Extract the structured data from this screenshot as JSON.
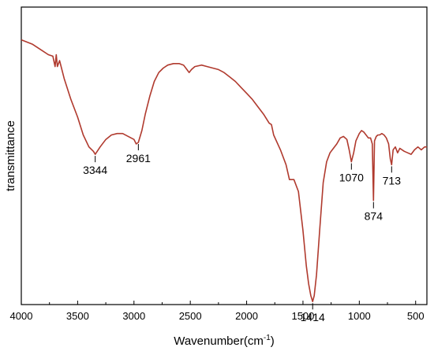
{
  "chart_data": {
    "type": "line",
    "xlabel_main": "Wavenumber(cm",
    "xlabel_sup": "-1",
    "xlabel_tail": ")",
    "ylabel": "transmittance",
    "xlim": [
      4000,
      400
    ],
    "ylim": [
      0,
      1
    ],
    "x_reversed": true,
    "y_ticks_shown": false,
    "grid": false,
    "line_color": "#b03a2e",
    "x_ticks": [
      4000,
      3500,
      3000,
      2500,
      2000,
      1500,
      1000,
      500
    ],
    "x_tick_labels": [
      "4000",
      "3500",
      "3000",
      "2500",
      "2000",
      "1500",
      "1000",
      "500"
    ],
    "series": [
      {
        "x": [
          4000,
          3900,
          3820,
          3760,
          3720,
          3700,
          3690,
          3680,
          3660,
          3620,
          3560,
          3500,
          3450,
          3400,
          3360,
          3344,
          3300,
          3250,
          3200,
          3150,
          3100,
          3050,
          3000,
          2980,
          2961,
          2930,
          2900,
          2860,
          2820,
          2780,
          2740,
          2700,
          2650,
          2600,
          2560,
          2530,
          2510,
          2490,
          2460,
          2400,
          2350,
          2300,
          2250,
          2200,
          2150,
          2100,
          2050,
          2000,
          1950,
          1900,
          1850,
          1800,
          1780,
          1760,
          1700,
          1650,
          1620,
          1580,
          1540,
          1500,
          1470,
          1450,
          1430,
          1414,
          1400,
          1380,
          1350,
          1320,
          1290,
          1260,
          1230,
          1200,
          1170,
          1140,
          1110,
          1090,
          1070,
          1050,
          1030,
          1000,
          980,
          960,
          940,
          920,
          900,
          885,
          874,
          865,
          850,
          835,
          820,
          800,
          780,
          760,
          740,
          725,
          713,
          700,
          680,
          660,
          640,
          620,
          600,
          570,
          540,
          510,
          480,
          450,
          420,
          400
        ],
        "y": [
          0.89,
          0.875,
          0.855,
          0.84,
          0.835,
          0.8,
          0.84,
          0.8,
          0.82,
          0.76,
          0.69,
          0.63,
          0.57,
          0.53,
          0.515,
          0.505,
          0.53,
          0.555,
          0.57,
          0.575,
          0.575,
          0.565,
          0.555,
          0.54,
          0.545,
          0.585,
          0.64,
          0.7,
          0.75,
          0.78,
          0.795,
          0.805,
          0.81,
          0.81,
          0.805,
          0.79,
          0.78,
          0.79,
          0.8,
          0.805,
          0.8,
          0.795,
          0.79,
          0.78,
          0.765,
          0.75,
          0.73,
          0.71,
          0.69,
          0.665,
          0.64,
          0.61,
          0.605,
          0.57,
          0.52,
          0.47,
          0.42,
          0.42,
          0.38,
          0.25,
          0.13,
          0.07,
          0.03,
          0.01,
          0.03,
          0.1,
          0.26,
          0.41,
          0.48,
          0.51,
          0.525,
          0.54,
          0.56,
          0.565,
          0.555,
          0.52,
          0.48,
          0.51,
          0.55,
          0.575,
          0.585,
          0.58,
          0.57,
          0.56,
          0.56,
          0.54,
          0.35,
          0.55,
          0.565,
          0.57,
          0.57,
          0.575,
          0.57,
          0.56,
          0.54,
          0.49,
          0.47,
          0.52,
          0.53,
          0.51,
          0.525,
          0.52,
          0.515,
          0.51,
          0.505,
          0.52,
          0.53,
          0.52,
          0.53,
          0.53
        ]
      }
    ],
    "annotations": [
      {
        "label": "3344",
        "x": 3344,
        "y": 0.505,
        "side": "below"
      },
      {
        "label": "2961",
        "x": 2961,
        "y": 0.545,
        "side": "below"
      },
      {
        "label": "1414",
        "x": 1414,
        "y": 0.01,
        "side": "below"
      },
      {
        "label": "1070",
        "x": 1070,
        "y": 0.48,
        "side": "below"
      },
      {
        "label": "874",
        "x": 874,
        "y": 0.35,
        "side": "below"
      },
      {
        "label": "713",
        "x": 713,
        "y": 0.47,
        "side": "below"
      }
    ]
  }
}
